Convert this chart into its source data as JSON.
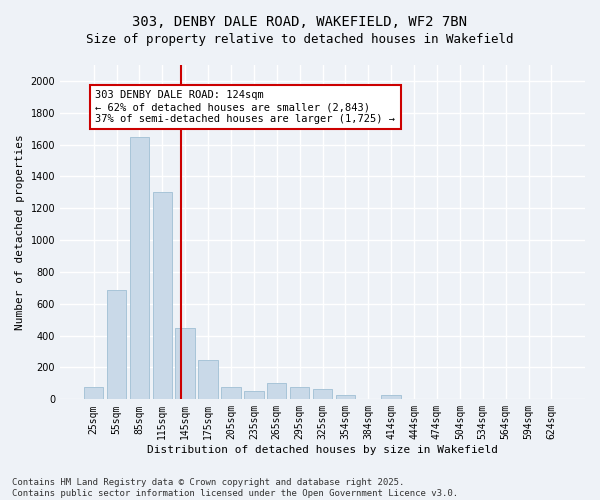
{
  "title_line1": "303, DENBY DALE ROAD, WAKEFIELD, WF2 7BN",
  "title_line2": "Size of property relative to detached houses in Wakefield",
  "xlabel": "Distribution of detached houses by size in Wakefield",
  "ylabel": "Number of detached properties",
  "categories": [
    "25sqm",
    "55sqm",
    "85sqm",
    "115sqm",
    "145sqm",
    "175sqm",
    "205sqm",
    "235sqm",
    "265sqm",
    "295sqm",
    "325sqm",
    "354sqm",
    "384sqm",
    "414sqm",
    "444sqm",
    "474sqm",
    "504sqm",
    "534sqm",
    "564sqm",
    "594sqm",
    "624sqm"
  ],
  "values": [
    75,
    685,
    1650,
    1300,
    450,
    250,
    80,
    50,
    100,
    75,
    65,
    30,
    0,
    30,
    0,
    0,
    0,
    0,
    0,
    0,
    0
  ],
  "bar_color": "#c9d9e8",
  "bar_edge_color": "#a8c4d8",
  "bar_width": 0.85,
  "ylim": [
    0,
    2100
  ],
  "yticks": [
    0,
    200,
    400,
    600,
    800,
    1000,
    1200,
    1400,
    1600,
    1800,
    2000
  ],
  "vline_x": 3.8,
  "vline_color": "#cc0000",
  "annotation_text": "303 DENBY DALE ROAD: 124sqm\n← 62% of detached houses are smaller (2,843)\n37% of semi-detached houses are larger (1,725) →",
  "annotation_box_color": "#ffffff",
  "annotation_edge_color": "#cc0000",
  "footer_line1": "Contains HM Land Registry data © Crown copyright and database right 2025.",
  "footer_line2": "Contains public sector information licensed under the Open Government Licence v3.0.",
  "bg_color": "#eef2f7",
  "plot_bg_color": "#eef2f7",
  "grid_color": "#ffffff",
  "title_fontsize": 10,
  "subtitle_fontsize": 9,
  "axis_label_fontsize": 8,
  "tick_fontsize": 7,
  "footer_fontsize": 6.5,
  "annotation_fontsize": 7.5
}
